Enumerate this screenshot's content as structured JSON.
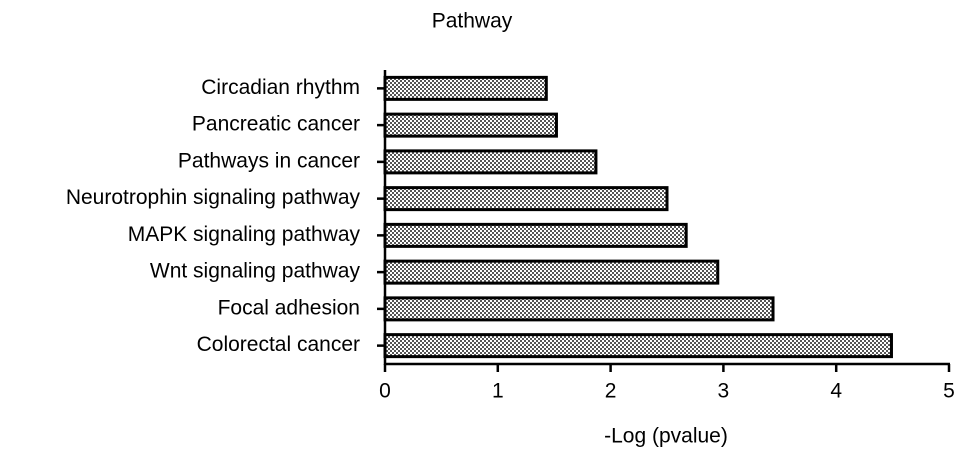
{
  "chart_data": {
    "type": "bar",
    "orientation": "horizontal",
    "title": "Pathway",
    "x_label": "-Log (pvalue)",
    "categories": [
      "Circadian rhythm",
      "Pancreatic cancer",
      "Pathways in cancer",
      "Neurotrophin signaling pathway",
      "MAPK signaling pathway",
      "Wnt signaling pathway",
      "Focal adhesion",
      "Colorectal cancer"
    ],
    "values": [
      1.43,
      1.52,
      1.87,
      2.5,
      2.67,
      2.95,
      3.44,
      4.49
    ],
    "color": "#000000",
    "xlim": [
      0,
      5
    ],
    "xticks": [
      0,
      1,
      2,
      3,
      4,
      5
    ],
    "grid": false
  }
}
